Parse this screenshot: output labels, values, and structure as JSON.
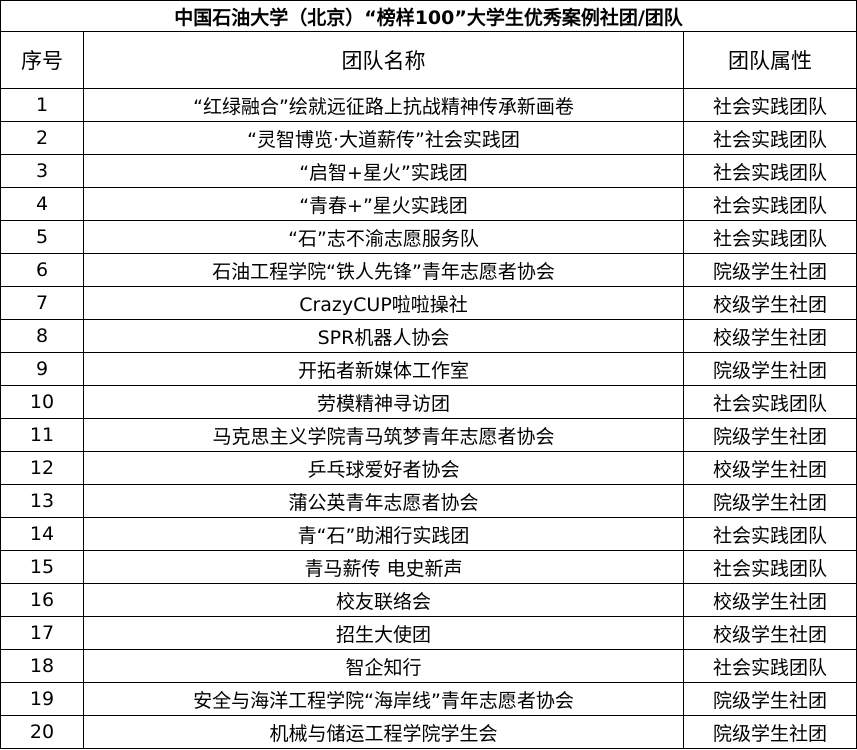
{
  "title": "中国石油大学（北京）“榜样100”大学生优秀案例社团/团队",
  "headers": [
    "序号",
    "团队名称",
    "团队属性"
  ],
  "rows": [
    {
      "no": "1",
      "name": "“红绿融合”绘就远征路上抗战精神传承新画卷",
      "type": "社会实践团队"
    },
    {
      "no": "2",
      "name": "“灵智博览·大道薪传”社会实践团",
      "type": "社会实践团队"
    },
    {
      "no": "3",
      "name": "“启智+星火”实践团",
      "type": "社会实践团队"
    },
    {
      "no": "4",
      "name": "“青春+”星火实践团",
      "type": "社会实践团队"
    },
    {
      "no": "5",
      "name": "“石”志不渝志愿服务队",
      "type": "社会实践团队"
    },
    {
      "no": "6",
      "name": "石油工程学院“铁人先锋”青年志愿者协会",
      "type": "院级学生社团"
    },
    {
      "no": "7",
      "name": "CrazyCUP啦啦操社",
      "type": "校级学生社团"
    },
    {
      "no": "8",
      "name": "SPR机器人协会",
      "type": "校级学生社团"
    },
    {
      "no": "9",
      "name": "开拓者新媒体工作室",
      "type": "院级学生社团"
    },
    {
      "no": "10",
      "name": "劳模精神寻访团",
      "type": "社会实践团队"
    },
    {
      "no": "11",
      "name": "马克思主义学院青马筑梦青年志愿者协会",
      "type": "院级学生社团"
    },
    {
      "no": "12",
      "name": "乒乓球爱好者协会",
      "type": "校级学生社团"
    },
    {
      "no": "13",
      "name": "蒲公英青年志愿者协会",
      "type": "院级学生社团"
    },
    {
      "no": "14",
      "name": "青“石”助湘行实践团",
      "type": "社会实践团队"
    },
    {
      "no": "15",
      "name": "青马薪传 电史新声",
      "type": "社会实践团队"
    },
    {
      "no": "16",
      "name": "校友联络会",
      "type": "校级学生社团"
    },
    {
      "no": "17",
      "name": "招生大使团",
      "type": "校级学生社团"
    },
    {
      "no": "18",
      "name": "智企知行",
      "type": "社会实践团队"
    },
    {
      "no": "19",
      "name": "安全与海洋工程学院“海岸线”青年志愿者协会",
      "type": "院级学生社团"
    },
    {
      "no": "20",
      "name": "机械与储运工程学院学生会",
      "type": "院级学生社团"
    }
  ]
}
